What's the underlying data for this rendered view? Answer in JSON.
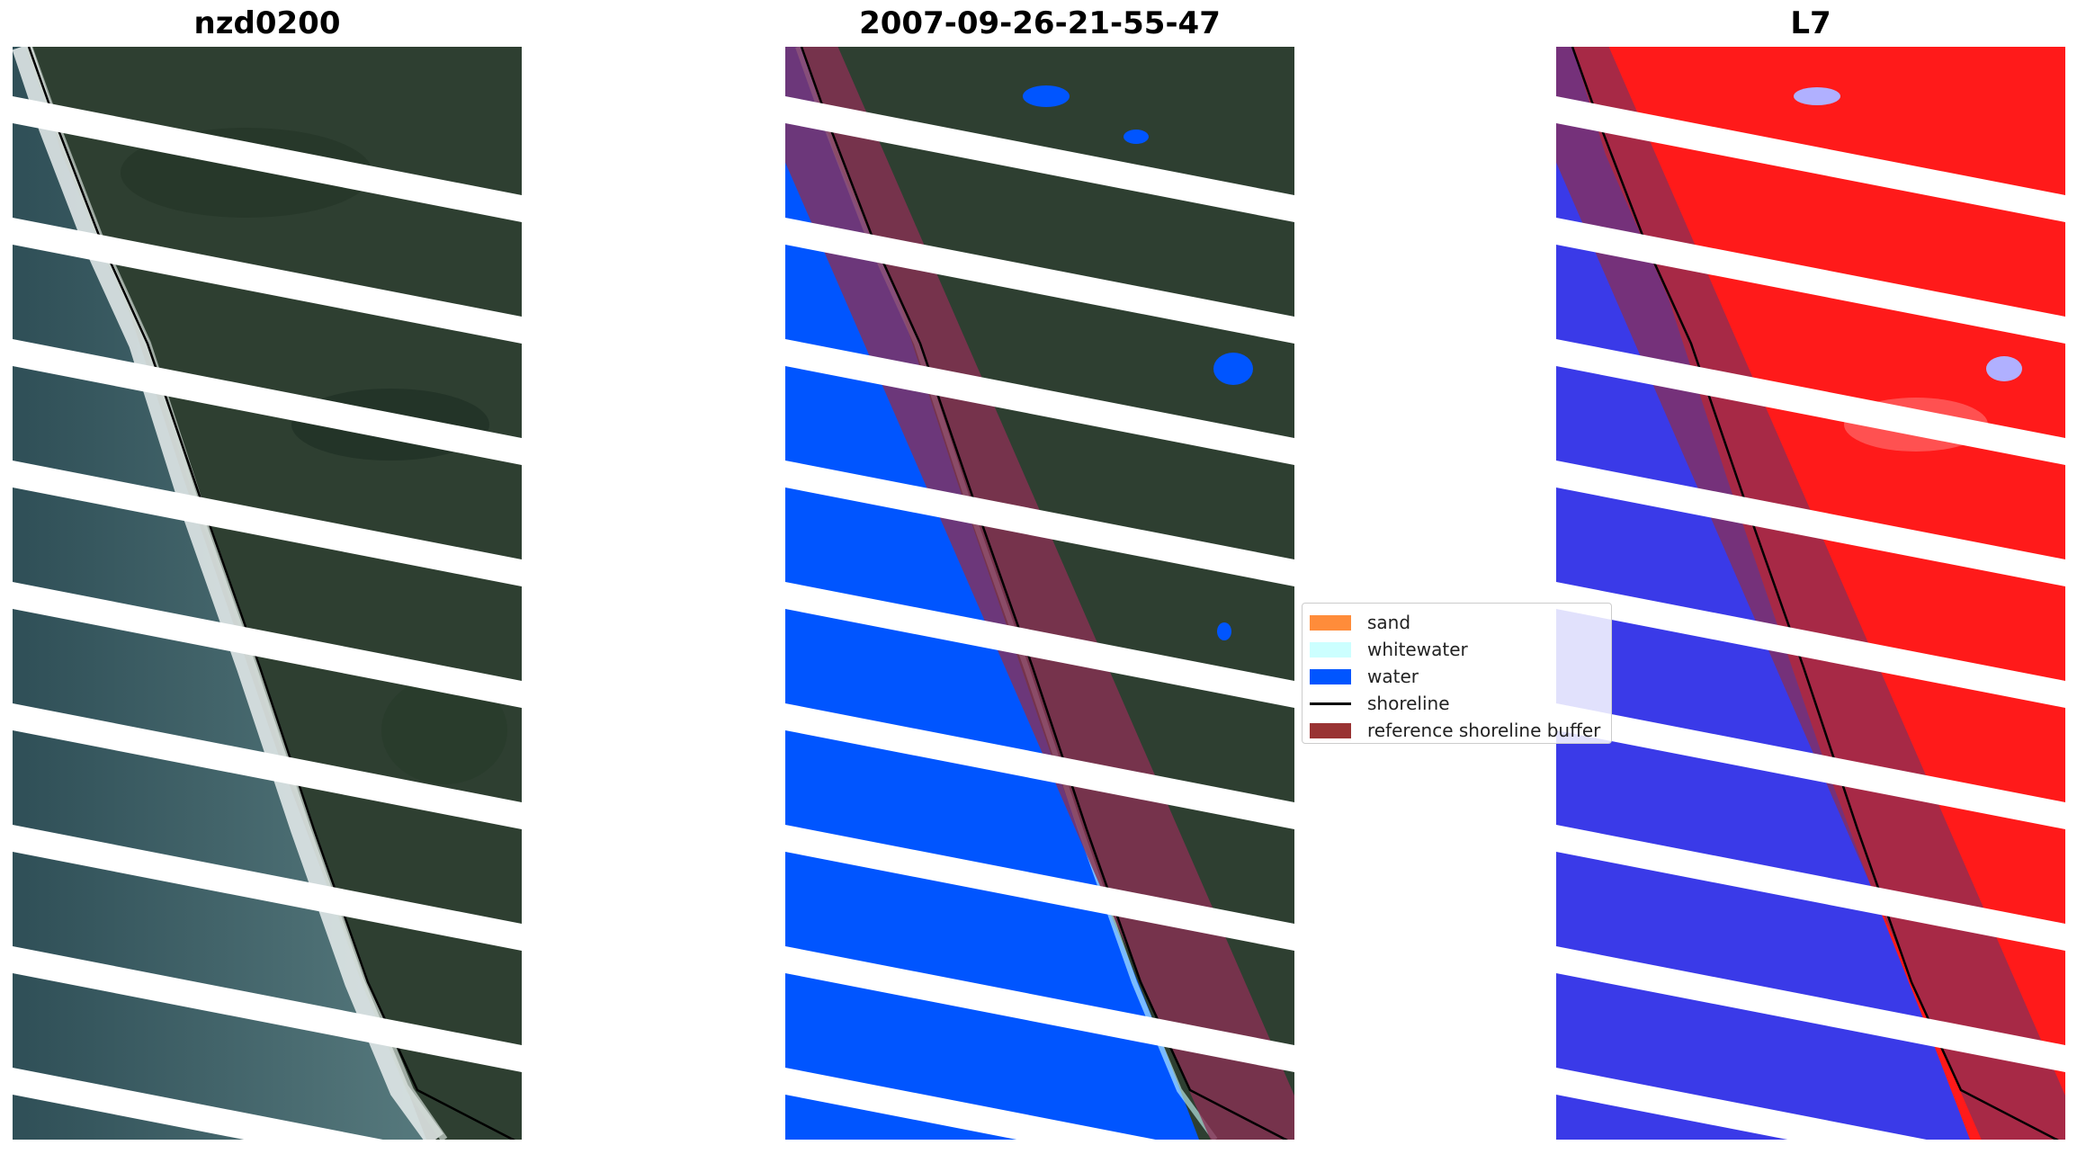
{
  "panels": [
    {
      "title": "nzd0200",
      "kind": "rgb"
    },
    {
      "title": "2007-09-26-21-55-47",
      "kind": "classified"
    },
    {
      "title": "L7",
      "kind": "index"
    }
  ],
  "legend": {
    "items": [
      {
        "label": "sand",
        "type": "patch",
        "color": "#ff8c3a"
      },
      {
        "label": "whitewater",
        "type": "patch",
        "color": "#ccffff"
      },
      {
        "label": "water",
        "type": "patch",
        "color": "#0055ff"
      },
      {
        "label": "shoreline",
        "type": "line",
        "color": "#000000"
      },
      {
        "label": "reference shoreline buffer",
        "type": "patch",
        "color": "#993333"
      }
    ]
  },
  "colors": {
    "land": "#2e3f31",
    "ocean": "#3b5a62",
    "surf": "#e8eeee",
    "water_class": "#0055ff",
    "index_land": "#ff1a1a",
    "index_water": "#3a3ae8",
    "buffer": "#8a2f55",
    "stripe_gap": "#ffffff"
  }
}
